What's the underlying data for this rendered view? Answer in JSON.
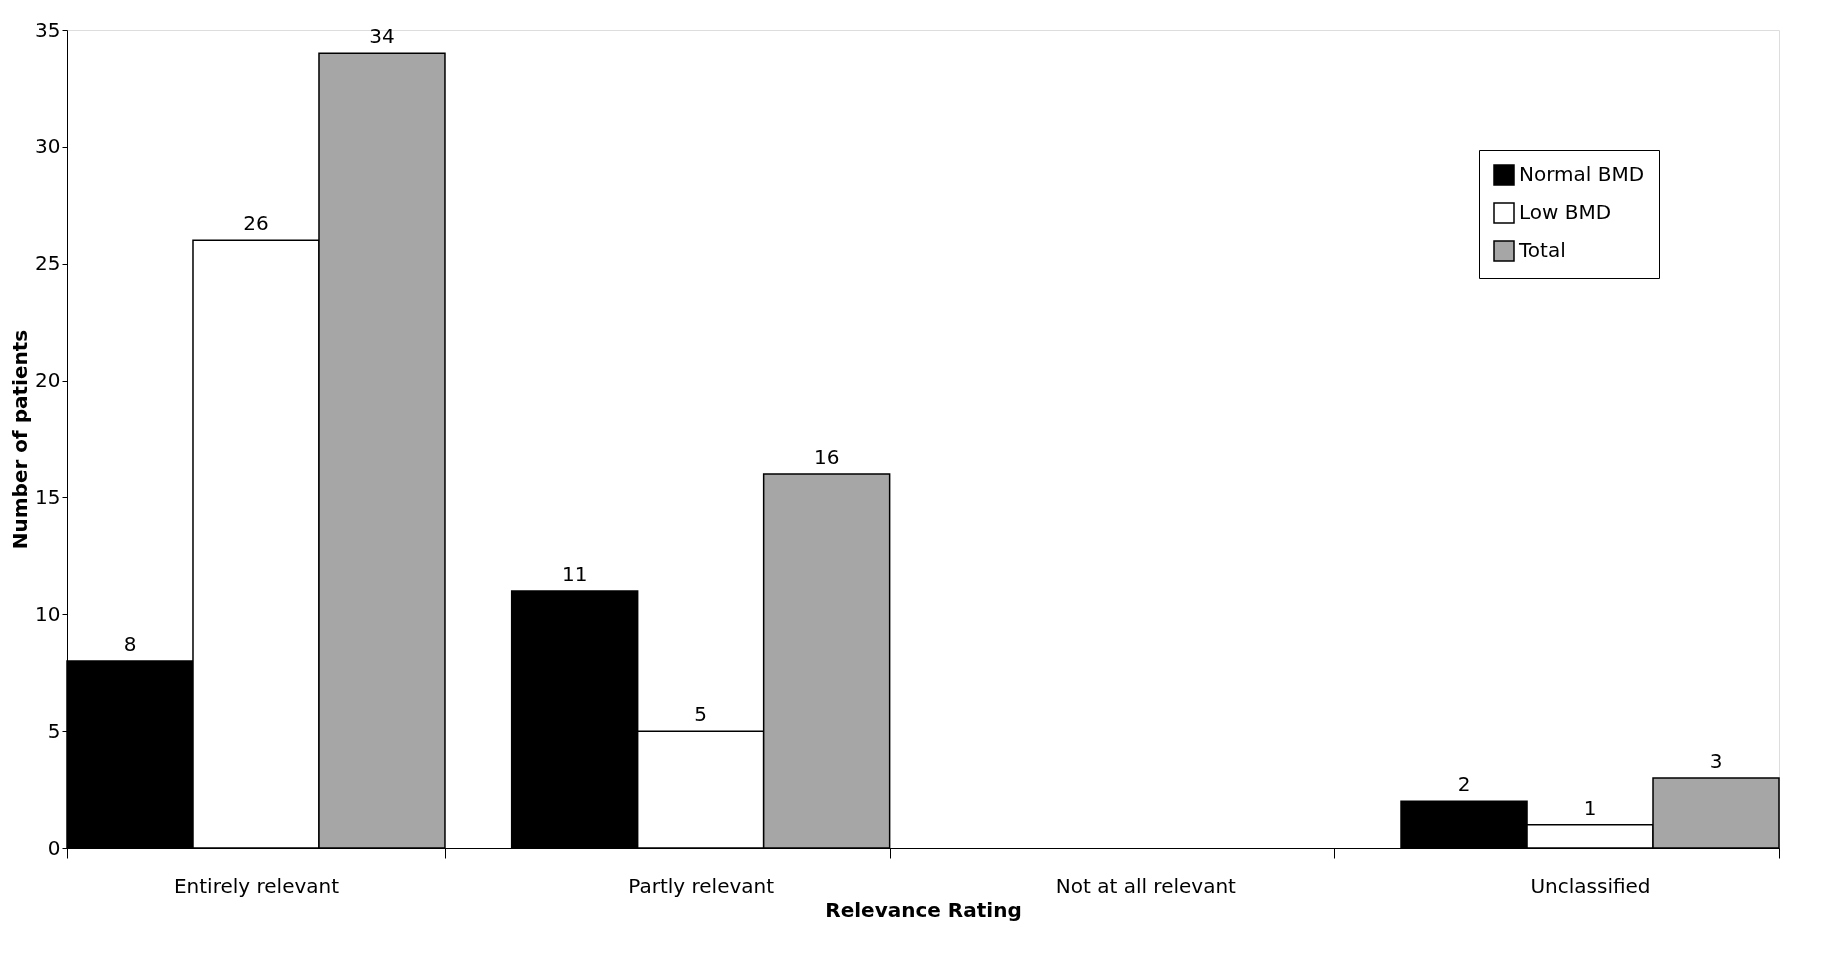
{
  "chart_data": {
    "type": "bar",
    "xlabel": "Relevance Rating",
    "ylabel": "Number of patients",
    "categories": [
      "Entirely relevant",
      "Partly relevant",
      "Not at all relevant",
      "Unclassified"
    ],
    "series": [
      {
        "name": "Normal BMD",
        "color": "#000000",
        "values": [
          8,
          11,
          null,
          2
        ]
      },
      {
        "name": "Low BMD",
        "color": "#ffffff",
        "values": [
          26,
          5,
          null,
          1
        ]
      },
      {
        "name": "Total",
        "color": "#a6a6a6",
        "values": [
          34,
          16,
          null,
          3
        ]
      }
    ],
    "ylim": [
      0,
      35
    ],
    "yticks": [
      0,
      5,
      10,
      15,
      20,
      25,
      30,
      35
    ],
    "grid": false,
    "legend": "top right",
    "data_labels": true
  }
}
